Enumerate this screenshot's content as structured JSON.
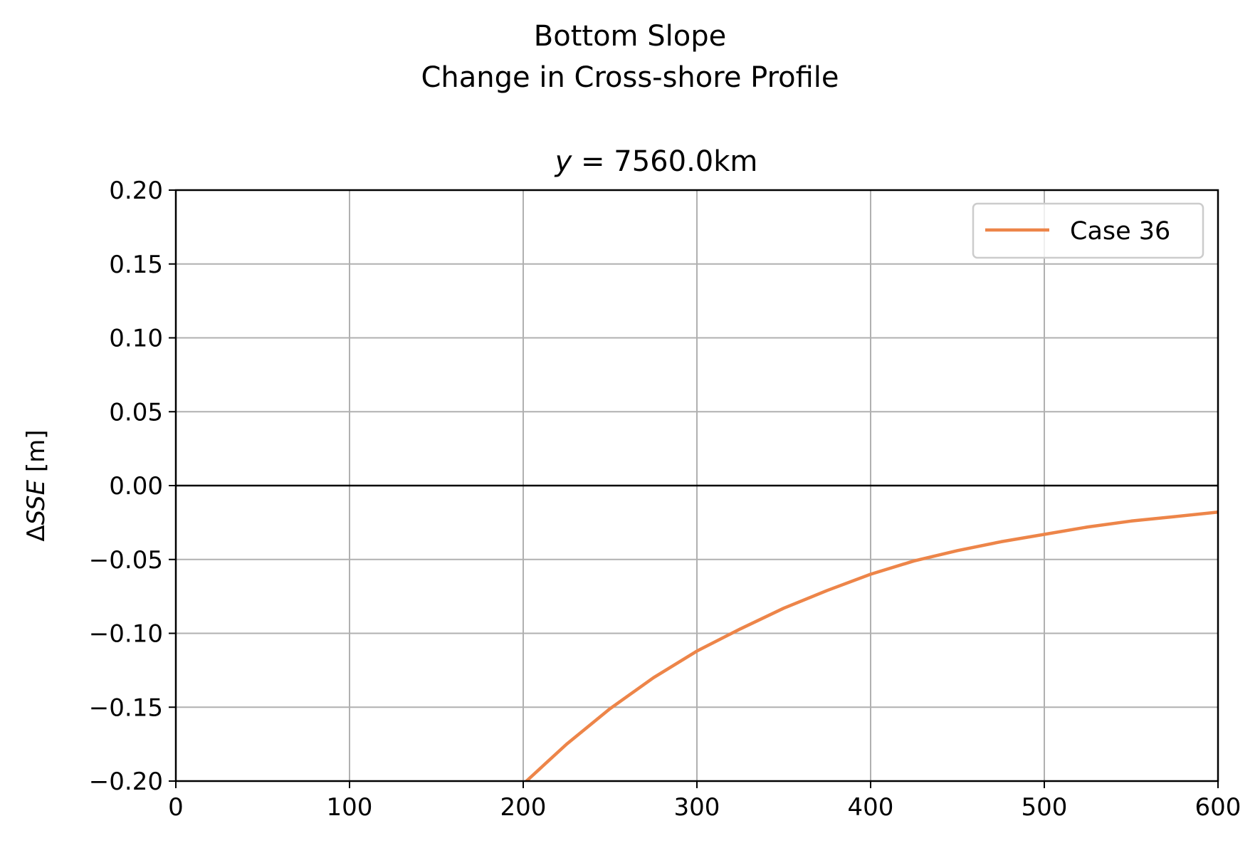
{
  "figure": {
    "suptitle_line1": "Bottom Slope",
    "suptitle_line2": "Change in Cross-shore Profile"
  },
  "chart_data": {
    "type": "line",
    "title_prefix": "y",
    "title_equals": " = ",
    "title_value": "7560.0km",
    "xlabel": "",
    "ylabel_delta": "Δ",
    "ylabel_var": "SSE",
    "ylabel_unit": " [m]",
    "xlim": [
      0,
      600
    ],
    "ylim": [
      -0.2,
      0.2
    ],
    "xticks": [
      0,
      100,
      200,
      300,
      400,
      500,
      600
    ],
    "xtick_labels": [
      "0",
      "100",
      "200",
      "300",
      "400",
      "500",
      "600"
    ],
    "yticks": [
      0.2,
      0.15,
      0.1,
      0.05,
      0.0,
      -0.05,
      -0.1,
      -0.15,
      -0.2
    ],
    "ytick_labels": [
      "0.20",
      "0.15",
      "0.10",
      "0.05",
      "0.00",
      "−0.05",
      "−0.10",
      "−0.15",
      "−0.20"
    ],
    "grid": true,
    "zero_line": true,
    "legend_position": "top-right",
    "series": [
      {
        "name": "Case 36",
        "color": "#ED8549",
        "x": [
          200,
          225,
          250,
          275,
          300,
          325,
          350,
          375,
          400,
          425,
          450,
          475,
          500,
          525,
          550,
          575,
          600
        ],
        "y": [
          -0.202,
          -0.175,
          -0.151,
          -0.13,
          -0.112,
          -0.097,
          -0.083,
          -0.071,
          -0.06,
          -0.051,
          -0.044,
          -0.038,
          -0.033,
          -0.028,
          -0.024,
          -0.021,
          -0.018
        ]
      }
    ]
  }
}
